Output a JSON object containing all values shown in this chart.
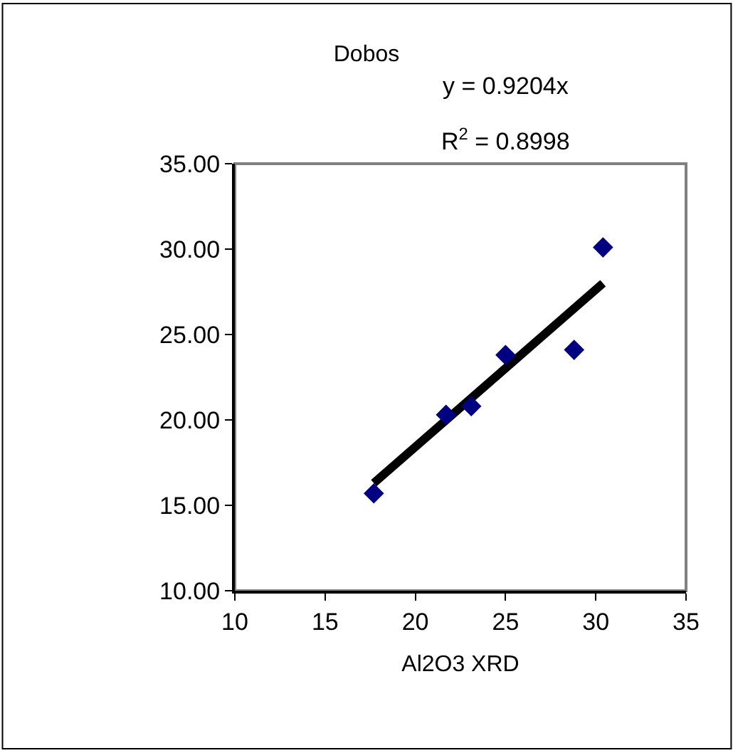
{
  "chart_data": {
    "type": "scatter",
    "title": "Dobos",
    "xlabel": "Al2O3 XRD",
    "annotations": [
      "y = 0.9204x",
      "R$^{2}$ = 0.8998"
    ],
    "series": [
      {
        "color": "#000080",
        "marker": "diamond",
        "x": [
          17.7,
          21.7,
          23.1,
          25.0,
          28.8,
          30.4
        ],
        "values": [
          15.7,
          20.3,
          20.8,
          23.8,
          24.1,
          30.1
        ]
      },
      {
        "type": "line",
        "marker": "none",
        "color": "#000000",
        "x": [
          17.7,
          30.4
        ],
        "values": [
          16.3,
          28.0
        ]
      }
    ],
    "xlim": [
      10,
      35
    ],
    "xticks": [
      10,
      15,
      20,
      25,
      30,
      35
    ],
    "ylim": [
      10,
      35
    ],
    "yticks": [
      {
        "value": 10,
        "label": "10.00"
      },
      {
        "value": 15,
        "label": "15.00"
      },
      {
        "value": 20,
        "label": "20.00"
      },
      {
        "value": 25,
        "label": "25.00"
      },
      {
        "value": 30,
        "label": "30.00"
      },
      {
        "value": 35,
        "label": "35.00"
      }
    ],
    "grid": false
  }
}
